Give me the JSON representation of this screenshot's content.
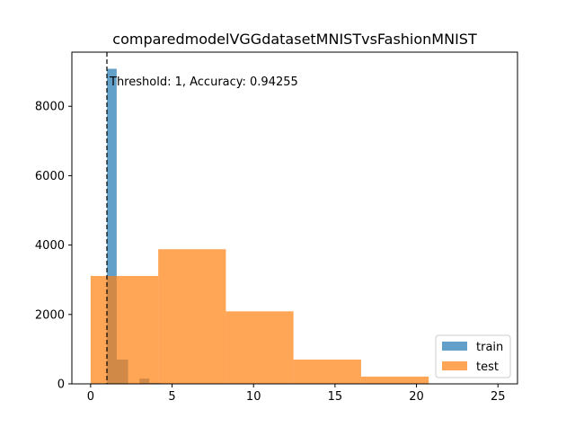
{
  "chart_data": {
    "type": "histogram",
    "title": "comparedmodelVGGdatasetMNISTvsFashionMNIST",
    "xlabel": "",
    "ylabel": "",
    "xlim": [
      -1.15,
      26.2
    ],
    "ylim": [
      0,
      9560
    ],
    "x_ticks": [
      0,
      5,
      10,
      15,
      20,
      25
    ],
    "y_ticks": [
      0,
      2000,
      4000,
      6000,
      8000
    ],
    "grid": false,
    "legend": {
      "position": "lower-right"
    },
    "series": [
      {
        "name": "train",
        "color": "#1f77b4",
        "alpha": 0.7,
        "bins": [
          {
            "x0": 1.0,
            "x1": 1.6,
            "count": 9080
          },
          {
            "x0": 1.6,
            "x1": 2.3,
            "count": 700
          },
          {
            "x0": 2.3,
            "x1": 3.0,
            "count": 0
          },
          {
            "x0": 3.0,
            "x1": 3.6,
            "count": 150
          },
          {
            "x0": 3.6,
            "x1": 4.3,
            "count": 30
          }
        ]
      },
      {
        "name": "test",
        "color": "#ff7f0e",
        "alpha": 0.7,
        "bins": [
          {
            "x0": 0.0,
            "x1": 4.15,
            "count": 3110
          },
          {
            "x0": 4.15,
            "x1": 8.3,
            "count": 3880
          },
          {
            "x0": 8.3,
            "x1": 12.45,
            "count": 2090
          },
          {
            "x0": 12.45,
            "x1": 16.6,
            "count": 700
          },
          {
            "x0": 16.6,
            "x1": 20.75,
            "count": 210
          }
        ]
      }
    ],
    "threshold": {
      "x": 1,
      "style": "dashed",
      "color": "#000000",
      "label": "Threshold: 1, Accuracy: 0.94255"
    }
  }
}
